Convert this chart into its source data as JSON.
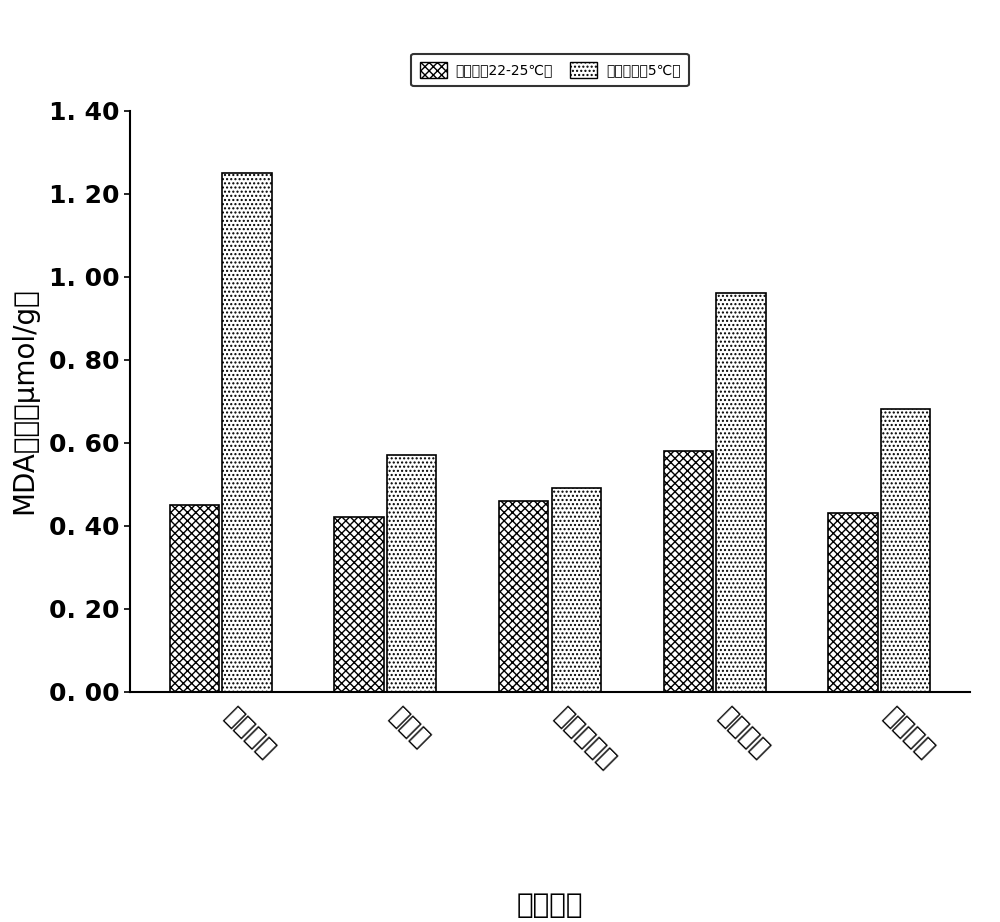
{
  "categories": [
    "苏州牛角",
    "二茬茄",
    "洛阳早青茄",
    "黑马墨茄",
    "安阳紫冠"
  ],
  "control_values": [
    0.45,
    0.42,
    0.46,
    0.58,
    0.43
  ],
  "treatment_values": [
    1.25,
    0.57,
    0.49,
    0.96,
    0.68
  ],
  "ylabel": "MDA含量（μmol/g）",
  "xlabel": "茄子品种",
  "ylim": [
    0.0,
    1.4
  ],
  "ytick_values": [
    0.0,
    0.2,
    0.4,
    0.6,
    0.8,
    1.0,
    1.2,
    1.4
  ],
  "ytick_labels": [
    "0. 00",
    "0. 20",
    "0. 40",
    "0. 60",
    "0. 80",
    "1. 00",
    "1. 20",
    "1. 40"
  ],
  "legend_labels": [
    "对照组（22-25℃）",
    "低温处理（5℃）"
  ],
  "bar_width": 0.3,
  "background_color": "#ffffff",
  "axis_fontsize": 20,
  "tick_fontsize": 18,
  "legend_fontsize": 18
}
